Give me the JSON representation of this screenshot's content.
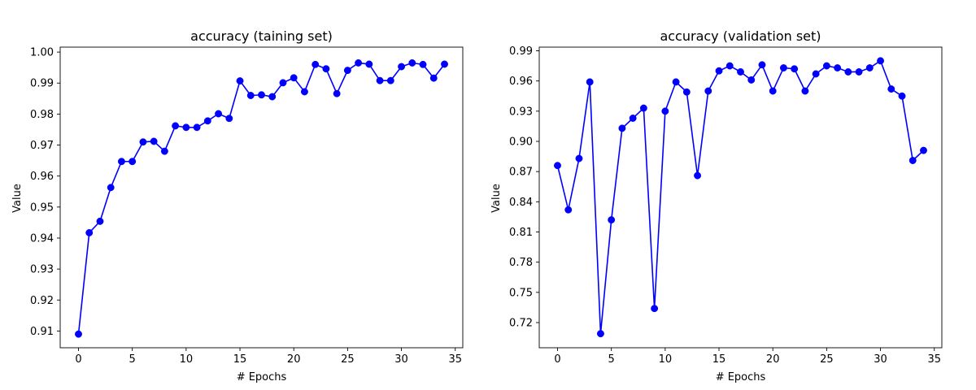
{
  "chart_data": [
    {
      "type": "line",
      "title": "accuracy (taining set)",
      "xlabel": "# Epochs",
      "ylabel": "Value",
      "xlim": [
        -1.7,
        35.7
      ],
      "ylim": [
        0.9046,
        1.0016
      ],
      "xticks": [
        0,
        5,
        10,
        15,
        20,
        25,
        30,
        35
      ],
      "yticks": [
        0.91,
        0.92,
        0.93,
        0.94,
        0.95,
        0.96,
        0.97,
        0.98,
        0.99,
        1.0
      ],
      "ytick_labels": [
        "0.91",
        "0.92",
        "0.93",
        "0.94",
        "0.95",
        "0.96",
        "0.97",
        "0.98",
        "0.99",
        "1.00"
      ],
      "color": "#0000ff",
      "marker": "circle",
      "grid": false,
      "x": [
        0,
        1,
        2,
        3,
        4,
        5,
        6,
        7,
        8,
        9,
        10,
        11,
        12,
        13,
        14,
        15,
        16,
        17,
        18,
        19,
        20,
        21,
        22,
        23,
        24,
        25,
        26,
        27,
        28,
        29,
        30,
        31,
        32,
        33,
        34
      ],
      "y": [
        0.909,
        0.9417,
        0.9454,
        0.9563,
        0.9647,
        0.9647,
        0.971,
        0.9712,
        0.968,
        0.9762,
        0.9757,
        0.9757,
        0.9778,
        0.9801,
        0.9786,
        0.9907,
        0.986,
        0.9862,
        0.9856,
        0.9901,
        0.9917,
        0.9872,
        0.996,
        0.9946,
        0.9866,
        0.9941,
        0.9965,
        0.9961,
        0.9908,
        0.9908,
        0.9953,
        0.9965,
        0.996,
        0.9916,
        0.9961
      ]
    },
    {
      "type": "line",
      "title": "accuracy (validation set)",
      "xlabel": "# Epochs",
      "ylabel": "Value",
      "xlim": [
        -1.7,
        35.7
      ],
      "ylim": [
        0.695,
        0.9936
      ],
      "xticks": [
        0,
        5,
        10,
        15,
        20,
        25,
        30,
        35
      ],
      "yticks": [
        0.72,
        0.75,
        0.78,
        0.81,
        0.84,
        0.87,
        0.9,
        0.93,
        0.96,
        0.99
      ],
      "ytick_labels": [
        "0.72",
        "0.75",
        "0.78",
        "0.81",
        "0.84",
        "0.87",
        "0.90",
        "0.93",
        "0.96",
        "0.99"
      ],
      "color": "#0000ff",
      "marker": "circle",
      "grid": false,
      "x": [
        0,
        1,
        2,
        3,
        4,
        5,
        6,
        7,
        8,
        9,
        10,
        11,
        12,
        13,
        14,
        15,
        16,
        17,
        18,
        19,
        20,
        21,
        22,
        23,
        24,
        25,
        26,
        27,
        28,
        29,
        30,
        31,
        32,
        33,
        34
      ],
      "y": [
        0.876,
        0.832,
        0.883,
        0.959,
        0.709,
        0.822,
        0.913,
        0.923,
        0.933,
        0.734,
        0.93,
        0.959,
        0.949,
        0.866,
        0.95,
        0.97,
        0.975,
        0.969,
        0.961,
        0.976,
        0.95,
        0.973,
        0.972,
        0.95,
        0.967,
        0.975,
        0.973,
        0.969,
        0.969,
        0.973,
        0.98,
        0.952,
        0.945,
        0.881,
        0.891
      ]
    }
  ]
}
